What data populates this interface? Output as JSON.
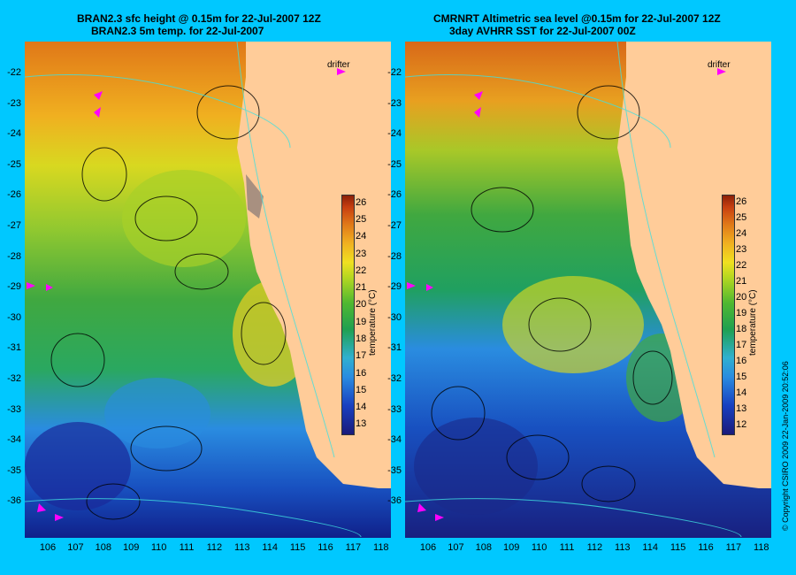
{
  "left": {
    "title1": "BRAN2.3 sfc height @ 0.15m for 22-Jul-2007 12Z",
    "title2": "BRAN2.3 5m temp. for 22-Jul-2007",
    "cbar_ticks": [
      "13",
      "14",
      "15",
      "16",
      "17",
      "18",
      "19",
      "20",
      "21",
      "22",
      "23",
      "24",
      "25",
      "26"
    ]
  },
  "right": {
    "title1": "CMRNRT Altimetric sea level  @0.15m  for 22-Jul-2007 12Z",
    "title2": "3day AVHRR SST for 22-Jul-2007 00Z",
    "cbar_ticks": [
      "12",
      "13",
      "14",
      "15",
      "16",
      "17",
      "18",
      "19",
      "20",
      "21",
      "22",
      "23",
      "24",
      "25",
      "26"
    ]
  },
  "lat_labels": [
    "-22",
    "-23",
    "-24",
    "-25",
    "-26",
    "-27",
    "-28",
    "-29",
    "-30",
    "-31",
    "-32",
    "-33",
    "-34",
    "-35",
    "-36"
  ],
  "lon_labels": [
    "106",
    "107",
    "108",
    "109",
    "110",
    "111",
    "112",
    "113",
    "114",
    "115",
    "116",
    "117",
    "118"
  ],
  "drifter_label": "drifter",
  "cbar_unit": "temperature (°C)",
  "copyright": "© Copyright CSIRO 2009   22-Jan-2009 20:52:06",
  "colors": {
    "background": "#00c8ff",
    "land": "#ffcc99",
    "drifter": "#ff00ff"
  }
}
